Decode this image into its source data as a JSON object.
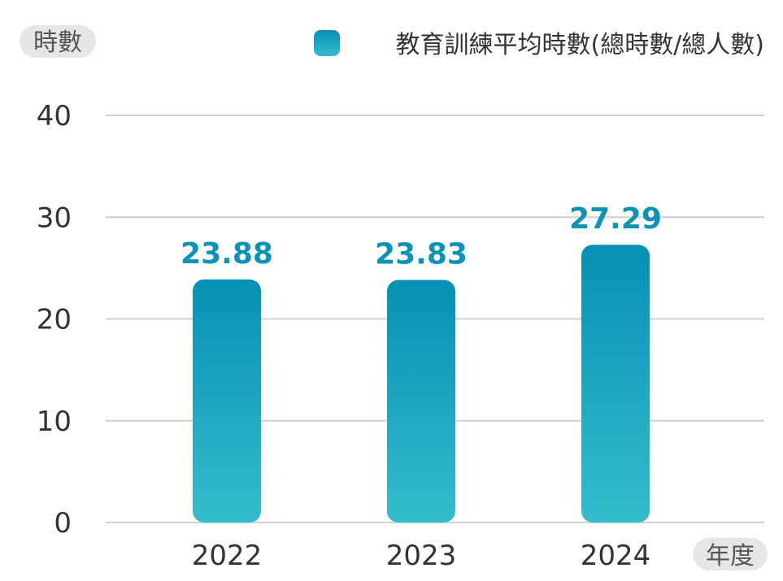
{
  "chart_data": {
    "type": "bar",
    "title": "",
    "ylabel": "時數",
    "xlabel": "年度",
    "categories": [
      "2022",
      "2023",
      "2024"
    ],
    "series": [
      {
        "name": "教育訓練平均時數(總時數/總人數)",
        "values": [
          23.88,
          23.83,
          27.29
        ]
      }
    ],
    "value_labels": [
      "23.88",
      "23.83",
      "27.29"
    ],
    "ylim": [
      0,
      40
    ],
    "yticks": [
      "0",
      "10",
      "20",
      "30",
      "40"
    ],
    "grid": true,
    "legend_position": "top-right",
    "colors": {
      "bar_top": "#0690b5",
      "bar_bottom": "#35bccb",
      "label": "#0c93b7",
      "grid": "#d0d0d0",
      "pill": "#e6e6e6"
    }
  }
}
